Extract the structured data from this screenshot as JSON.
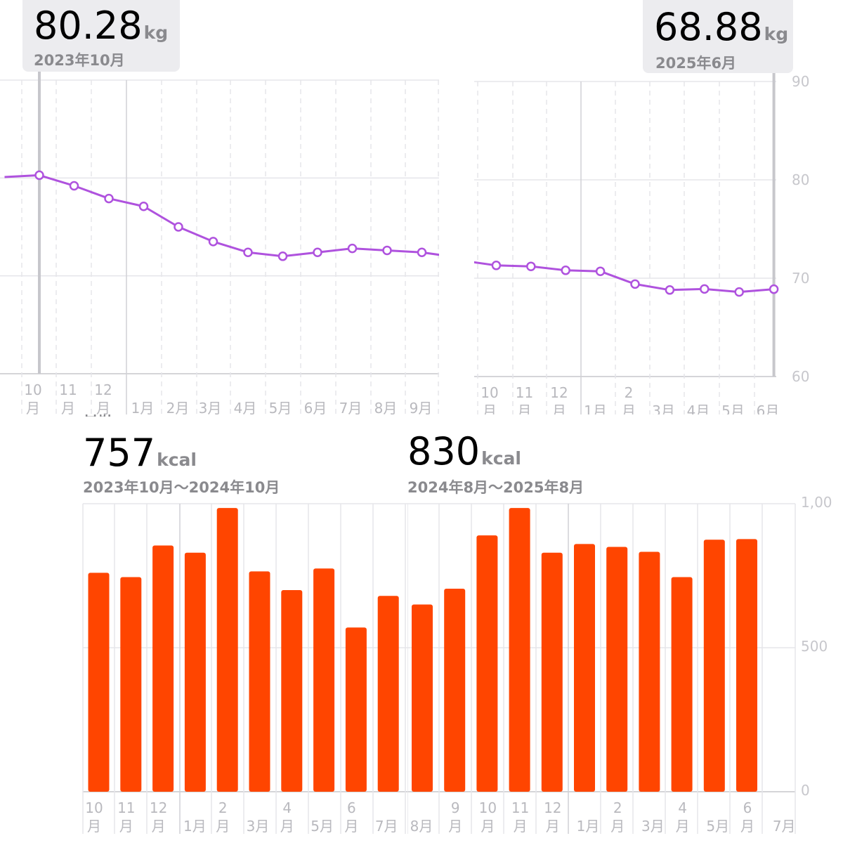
{
  "weight_left": {
    "value": "80.28",
    "unit": "kg",
    "date": "2023年10月",
    "yticks": [
      "90",
      "80",
      "70",
      "60"
    ],
    "xticks": [
      {
        "top": "10",
        "bottom": "月"
      },
      {
        "top": "11",
        "bottom": "月"
      },
      {
        "top": "12",
        "bottom": "月"
      },
      {
        "top": "",
        "bottom": "1月"
      },
      {
        "top": "",
        "bottom": "2月"
      },
      {
        "top": "",
        "bottom": "3月"
      },
      {
        "top": "",
        "bottom": "4月"
      },
      {
        "top": "",
        "bottom": "5月"
      },
      {
        "top": "",
        "bottom": "6月"
      },
      {
        "top": "",
        "bottom": "7月"
      },
      {
        "top": "",
        "bottom": "8月"
      },
      {
        "top": "",
        "bottom": "9月"
      }
    ]
  },
  "weight_right": {
    "value": "68.88",
    "unit": "kg",
    "date": "2025年6月",
    "yticks": [
      "90",
      "80",
      "70",
      "60"
    ],
    "xticks": [
      {
        "top": "10",
        "bottom": "月"
      },
      {
        "top": "11",
        "bottom": "月"
      },
      {
        "top": "12",
        "bottom": "月"
      },
      {
        "top": "",
        "bottom": "1月"
      },
      {
        "top": "2",
        "bottom": "月"
      },
      {
        "top": "",
        "bottom": "3月"
      },
      {
        "top": "",
        "bottom": "4月"
      },
      {
        "top": "",
        "bottom": "5月"
      },
      {
        "top": "",
        "bottom": "6月"
      }
    ]
  },
  "calorie_left": {
    "value": "757",
    "unit": "kcal",
    "range": "2023年10月〜2024年10月",
    "xticks": [
      {
        "top": "10",
        "bottom": "月"
      },
      {
        "top": "11",
        "bottom": "月"
      },
      {
        "top": "12",
        "bottom": "月"
      },
      {
        "top": "",
        "bottom": "1月"
      },
      {
        "top": "2",
        "bottom": "月"
      },
      {
        "top": "",
        "bottom": "3月"
      },
      {
        "top": "4",
        "bottom": "月"
      },
      {
        "top": "",
        "bottom": "5月"
      },
      {
        "top": "6",
        "bottom": "月"
      },
      {
        "top": "",
        "bottom": "7月"
      }
    ]
  },
  "calorie_right": {
    "value": "830",
    "unit": "kcal",
    "range": "2024年8月〜2025年8月",
    "yticks": [
      "1,00",
      "500",
      "0"
    ],
    "xticks": [
      {
        "top": "",
        "bottom": "8月"
      },
      {
        "top": "9",
        "bottom": "月"
      },
      {
        "top": "10",
        "bottom": "月"
      },
      {
        "top": "11",
        "bottom": "月"
      },
      {
        "top": "12",
        "bottom": "月"
      },
      {
        "top": "",
        "bottom": "1月"
      },
      {
        "top": "2",
        "bottom": "月"
      },
      {
        "top": "",
        "bottom": "3月"
      },
      {
        "top": "4",
        "bottom": "月"
      },
      {
        "top": "",
        "bottom": "5月"
      },
      {
        "top": "6",
        "bottom": "月"
      },
      {
        "top": "",
        "bottom": "7月"
      }
    ]
  },
  "colors": {
    "line": "#af52de",
    "bar": "#ff4500",
    "grid": "#e5e5ea",
    "tick": "#c7c7cc",
    "selection": "#c7c7cc"
  },
  "chart_data": [
    {
      "type": "line",
      "x": [
        "2023-09",
        "2023-10",
        "2023-11",
        "2023-12",
        "2024-01",
        "2024-02",
        "2024-03",
        "2024-04",
        "2024-05",
        "2024-06",
        "2024-07",
        "2024-08",
        "2024-09",
        "2024-10"
      ],
      "series": [
        {
          "values": [
            80.1,
            80.28,
            79.2,
            77.9,
            77.1,
            75.0,
            73.5,
            72.4,
            72.0,
            72.4,
            72.8,
            72.6,
            72.4,
            71.9
          ]
        }
      ],
      "ylim": [
        60,
        90
      ],
      "selected": "2023-10",
      "grid": true
    },
    {
      "type": "line",
      "x": [
        "2024-09",
        "2024-10",
        "2024-11",
        "2024-12",
        "2025-01",
        "2025-02",
        "2025-03",
        "2025-04",
        "2025-05",
        "2025-06"
      ],
      "series": [
        {
          "values": [
            71.8,
            71.3,
            71.2,
            70.8,
            70.7,
            69.4,
            68.8,
            68.9,
            68.6,
            68.88
          ]
        }
      ],
      "ylim": [
        60,
        90
      ],
      "selected": "2025-06",
      "grid": true
    },
    {
      "type": "bar",
      "categories": [
        "2023-10",
        "2023-11",
        "2023-12",
        "2024-01",
        "2024-02",
        "2024-03",
        "2024-04",
        "2024-05",
        "2024-06",
        "2024-07"
      ],
      "values": [
        760,
        745,
        855,
        830,
        985,
        765,
        700,
        775,
        570,
        680
      ],
      "ylim": [
        0,
        1000
      ],
      "grid": true
    },
    {
      "type": "bar",
      "categories": [
        "2024-08",
        "2024-09",
        "2024-10",
        "2024-11",
        "2024-12",
        "2025-01",
        "2025-02",
        "2025-03",
        "2025-04",
        "2025-05",
        "2025-06",
        "2025-07"
      ],
      "values": [
        650,
        705,
        890,
        985,
        830,
        860,
        850,
        833,
        745,
        875,
        877,
        0
      ],
      "ylim": [
        0,
        1000
      ],
      "grid": true
    }
  ]
}
